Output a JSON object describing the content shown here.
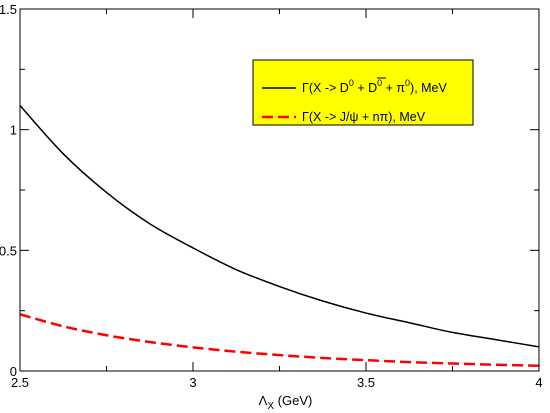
{
  "chart_data": {
    "type": "line",
    "title": "",
    "xlabel": "Λ",
    "xlabel_sub": "X",
    "xlabel_unit": " (GeV)",
    "ylabel": "",
    "xlim": [
      2.5,
      4.0
    ],
    "ylim": [
      0,
      1.5
    ],
    "x_ticks": [
      {
        "value": 2.5,
        "label": "2.5"
      },
      {
        "value": 3.0,
        "label": "3"
      },
      {
        "value": 3.5,
        "label": "3.5"
      },
      {
        "value": 4.0,
        "label": "4"
      }
    ],
    "y_ticks": [
      {
        "value": 0,
        "label": "0"
      },
      {
        "value": 0.5,
        "label": "0.5"
      },
      {
        "value": 1.0,
        "label": "1"
      },
      {
        "value": 1.5,
        "label": "1.5"
      }
    ],
    "grid": false,
    "legend": {
      "placement": "top-right",
      "background": "#ffff00"
    },
    "series": [
      {
        "name": "Γ(X -> D⁰ + D̅⁰ + π⁰),  MeV",
        "color": "#000000",
        "dashed": false,
        "x": [
          2.5,
          2.625,
          2.75,
          2.875,
          3.0,
          3.125,
          3.25,
          3.375,
          3.5,
          3.625,
          3.75,
          3.875,
          4.0
        ],
        "y": [
          1.1,
          0.9,
          0.74,
          0.61,
          0.51,
          0.42,
          0.35,
          0.29,
          0.24,
          0.2,
          0.16,
          0.13,
          0.1
        ]
      },
      {
        "name": "Γ(X -> J/ψ + nπ),  MeV",
        "color": "#ff0000",
        "dashed": true,
        "x": [
          2.5,
          2.625,
          2.75,
          2.875,
          3.0,
          3.125,
          3.25,
          3.375,
          3.5,
          3.625,
          3.75,
          3.875,
          4.0
        ],
        "y": [
          0.235,
          0.185,
          0.148,
          0.12,
          0.098,
          0.08,
          0.066,
          0.054,
          0.045,
          0.037,
          0.031,
          0.026,
          0.022
        ]
      }
    ],
    "legend_entries": [
      {
        "gamma": "Γ",
        "text_a": "(X -> D",
        "sup_a": "0",
        "text_b": " + D",
        "sup_b": "0",
        "text_c": " + π",
        "sup_c": "0",
        "text_d": "),  MeV"
      },
      {
        "gamma": "Γ",
        "text_a": "(X -> J/ψ + nπ),  MeV"
      }
    ]
  }
}
